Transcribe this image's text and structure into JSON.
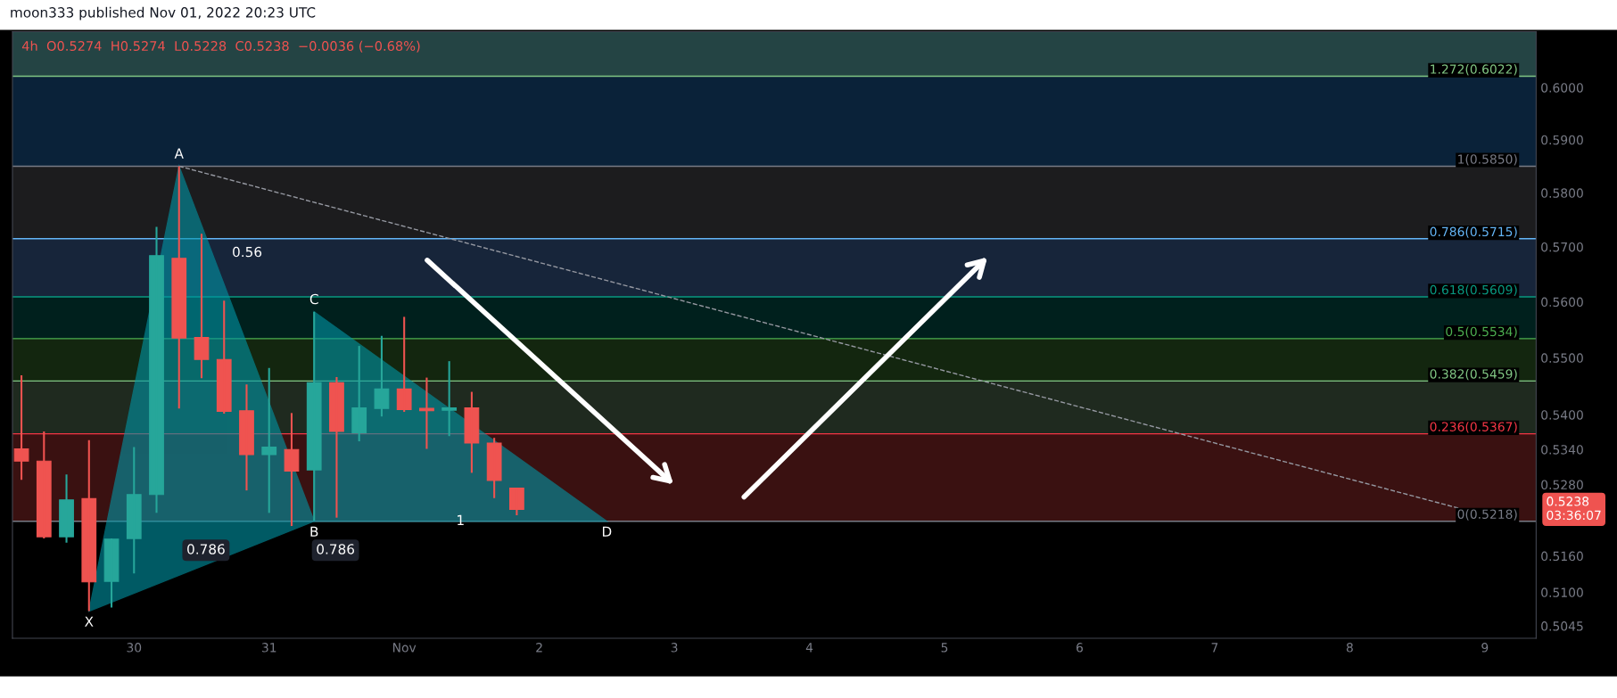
{
  "chart_data": {
    "type": "candlestick",
    "title": "moon333 published Nov 01, 2022 20:23 UTC",
    "subtitle": "4h  O0.5274  H0.5274  L0.5228  C0.5238  −0.0036 (−0.68%)",
    "x": [
      "2022-10-29T04:00",
      "2022-10-29T08:00",
      "2022-10-29T12:00",
      "2022-10-29T16:00",
      "2022-10-29T20:00",
      "2022-10-30T00:00",
      "2022-10-30T04:00",
      "2022-10-30T08:00",
      "2022-10-30T12:00",
      "2022-10-30T16:00",
      "2022-10-30T20:00",
      "2022-10-31T00:00",
      "2022-10-31T04:00",
      "2022-10-31T08:00",
      "2022-10-31T12:00",
      "2022-10-31T16:00",
      "2022-10-31T20:00",
      "2022-11-01T00:00",
      "2022-11-01T04:00",
      "2022-11-01T08:00",
      "2022-11-01T12:00",
      "2022-11-01T16:00",
      "2022-11-01T20:00"
    ],
    "ohlc": [
      [
        0.5341,
        0.5469,
        0.5288,
        0.532
      ],
      [
        0.532,
        0.5371,
        0.5189,
        0.5192
      ],
      [
        0.5192,
        0.5297,
        0.5182,
        0.5254
      ],
      [
        0.5256,
        0.5356,
        0.5069,
        0.5117
      ],
      [
        0.5118,
        0.5189,
        0.5075,
        0.5188
      ],
      [
        0.5189,
        0.5344,
        0.5131,
        0.5263
      ],
      [
        0.5263,
        0.5737,
        0.5232,
        0.5684
      ],
      [
        0.5679,
        0.585,
        0.5411,
        0.5535
      ],
      [
        0.5536,
        0.5724,
        0.5464,
        0.5497
      ],
      [
        0.5497,
        0.5602,
        0.5402,
        0.5406
      ],
      [
        0.5407,
        0.5453,
        0.527,
        0.5331
      ],
      [
        0.5331,
        0.5482,
        0.5232,
        0.5344
      ],
      [
        0.534,
        0.5403,
        0.521,
        0.5303
      ],
      [
        0.5305,
        0.5582,
        0.5219,
        0.5456
      ],
      [
        0.5456,
        0.5466,
        0.5224,
        0.5371
      ],
      [
        0.5369,
        0.5521,
        0.5354,
        0.5412
      ],
      [
        0.5411,
        0.5539,
        0.5397,
        0.5445
      ],
      [
        0.5445,
        0.5573,
        0.5405,
        0.5409
      ],
      [
        0.5411,
        0.5465,
        0.5341,
        0.5407
      ],
      [
        0.5408,
        0.5494,
        0.5363,
        0.5412
      ],
      [
        0.5412,
        0.544,
        0.53,
        0.5351
      ],
      [
        0.5351,
        0.536,
        0.5257,
        0.5287
      ],
      [
        0.5274,
        0.5274,
        0.5228,
        0.5238
      ]
    ],
    "colors": [
      "#ef5350",
      "#ef5350",
      "#26a69a",
      "#ef5350",
      "#26a69a",
      "#26a69a",
      "#26a69a",
      "#ef5350",
      "#ef5350",
      "#ef5350",
      "#ef5350",
      "#26a69a",
      "#ef5350",
      "#26a69a",
      "#ef5350",
      "#26a69a",
      "#26a69a",
      "#ef5350",
      "#ef5350",
      "#26a69a",
      "#ef5350",
      "#ef5350",
      "#ef5350"
    ],
    "series": [
      {
        "type": "line",
        "x": [
          "2022-10-30T08:00",
          "2022-11-09T04:00"
        ],
        "values": [
          0.585,
          0.5218
        ],
        "color": "#9598a1",
        "line_style": "dashed",
        "marker": "none"
      }
    ],
    "xlim": [
      "2022-10-29T02:24",
      "2022-11-09T09:07"
    ],
    "xticks": [
      {
        "value": "2022-10-30",
        "label": "30"
      },
      {
        "value": "2022-10-31",
        "label": "31"
      },
      {
        "value": "2022-11-01",
        "label": "Nov"
      },
      {
        "value": "2022-11-02",
        "label": "2"
      },
      {
        "value": "2022-11-03",
        "label": "3"
      },
      {
        "value": "2022-11-04",
        "label": "4"
      },
      {
        "value": "2022-11-05",
        "label": "5"
      },
      {
        "value": "2022-11-06",
        "label": "6"
      },
      {
        "value": "2022-11-07",
        "label": "7"
      },
      {
        "value": "2022-11-08",
        "label": "8"
      },
      {
        "value": "2022-11-09",
        "label": "9"
      }
    ],
    "log": true,
    "ylim": [
      0.5025,
      0.6109
    ],
    "yticks": [
      {
        "value": 0.5045,
        "label": "0.5045"
      },
      {
        "value": 0.51,
        "label": "0.5100"
      },
      {
        "value": 0.516,
        "label": "0.5160"
      },
      {
        "value": 0.528,
        "label": "0.5280"
      },
      {
        "value": 0.534,
        "label": "0.5340"
      },
      {
        "value": 0.54,
        "label": "0.5400"
      },
      {
        "value": 0.55,
        "label": "0.5500"
      },
      {
        "value": 0.56,
        "label": "0.5600"
      },
      {
        "value": 0.57,
        "label": "0.5700"
      },
      {
        "value": 0.58,
        "label": "0.5800"
      },
      {
        "value": 0.59,
        "label": "0.5900"
      },
      {
        "value": 0.6,
        "label": "0.6000"
      }
    ],
    "ref_lines": [
      {
        "axis": "y",
        "value": 0.6022,
        "label": "1.272(0.6022)",
        "color": "#81c784"
      },
      {
        "axis": "y",
        "value": 0.585,
        "label": "1(0.5850)",
        "color": "#787b86"
      },
      {
        "axis": "y",
        "value": 0.5715,
        "label": "0.786(0.5715)",
        "color": "#64b5f6"
      },
      {
        "axis": "y",
        "value": 0.5609,
        "label": "0.618(0.5609)",
        "color": "#089981"
      },
      {
        "axis": "y",
        "value": 0.5534,
        "label": "0.5(0.5534)",
        "color": "#4caf50"
      },
      {
        "axis": "y",
        "value": 0.5459,
        "label": "0.382(0.5459)",
        "color": "#81c784"
      },
      {
        "axis": "y",
        "value": 0.5367,
        "label": "0.236(0.5367)",
        "color": "#f23645"
      },
      {
        "axis": "y",
        "value": 0.5218,
        "label": "0(0.5218)",
        "color": "#787b86"
      }
    ],
    "bands": [
      {
        "axis": "y",
        "from": 0.6022,
        "to": 0.6109,
        "color": "#244444"
      },
      {
        "axis": "y",
        "from": 0.585,
        "to": 0.6022,
        "color": "#0a2239"
      },
      {
        "axis": "y",
        "from": 0.5715,
        "to": 0.585,
        "color": "#1c1c1e"
      },
      {
        "axis": "y",
        "from": 0.5609,
        "to": 0.5715,
        "color": "#17253a"
      },
      {
        "axis": "y",
        "from": 0.5534,
        "to": 0.5609,
        "color": "#00201d"
      },
      {
        "axis": "y",
        "from": 0.5459,
        "to": 0.5534,
        "color": "#13260f"
      },
      {
        "axis": "y",
        "from": 0.5367,
        "to": 0.5459,
        "color": "#1f2a1f"
      },
      {
        "axis": "y",
        "from": 0.5218,
        "to": 0.5367,
        "color": "#3a1111"
      }
    ],
    "annotations": [
      {
        "text": "X",
        "x": "2022-10-29T16:00",
        "y": 0.5069
      },
      {
        "text": "A",
        "x": "2022-10-30T08:00",
        "y": 0.585
      },
      {
        "text": "B",
        "x": "2022-10-31T08:00",
        "y": 0.5218
      },
      {
        "text": "C",
        "x": "2022-10-31T08:00",
        "y": 0.5582
      },
      {
        "text": "D",
        "x": "2022-11-02T12:00",
        "y": 0.5218
      },
      "0.786",
      "0.786",
      "0.56",
      {
        "text": "1",
        "x": "2022-11-01T10:00",
        "y": 0.5218
      },
      "0.5238\n03:36:07"
    ],
    "grid": false,
    "legend": false
  }
}
